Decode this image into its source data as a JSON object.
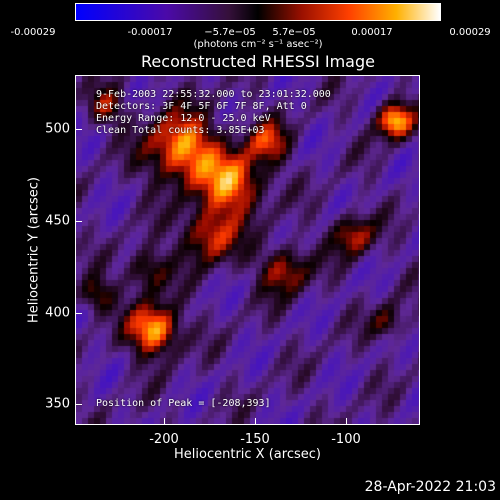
{
  "colorbar": {
    "ticks": [
      "-0.00029",
      "-0.00017",
      "−5.7e−05",
      "5.7e−05",
      "0.00017",
      "0.00029"
    ],
    "units": "(photons cm⁻² s⁻¹ asec⁻²)"
  },
  "title": "Reconstructed RHESSI Image",
  "info": {
    "time": "9-Feb-2003 22:55:32.000 to 23:01:32.000",
    "detectors": "Detectors: 3F 4F 5F 6F 7F 8F, Att 0",
    "energy": "Energy Range: 12.0 - 25.0 keV",
    "method": "Clean    Total counts: 3.85E+03",
    "peak": "Position of Peak = [-208,393]"
  },
  "axes": {
    "xlabel": "Heliocentric X (arcsec)",
    "ylabel": "Heliocentric Y (arcsec)",
    "xticks": [
      "-200",
      "-150",
      "-100"
    ],
    "yticks": [
      "500",
      "450",
      "400",
      "350"
    ]
  },
  "footer": "28-Apr-2022 21:03"
}
